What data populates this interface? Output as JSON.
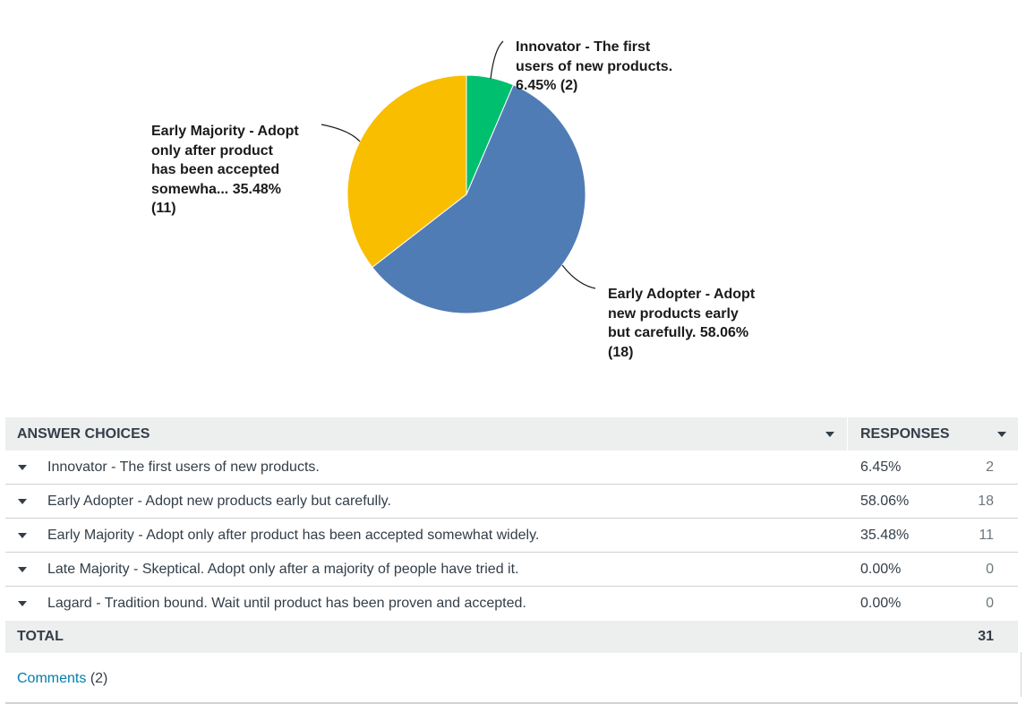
{
  "chart_data": {
    "type": "pie",
    "slices": [
      {
        "label_lines": [
          "Innovator - The first",
          "users of new products.",
          "6.45% (2)"
        ],
        "value": 6.45,
        "color": "#00bf6f"
      },
      {
        "label_lines": [
          "Early Adopter - Adopt",
          "new products early",
          "but carefully. 58.06%",
          "(18)"
        ],
        "value": 58.06,
        "color": "#507cb6"
      },
      {
        "label_lines": [
          "Early Majority - Adopt",
          "only after product",
          "has been accepted",
          "somewha... 35.48%",
          "(11)"
        ],
        "value": 35.48,
        "color": "#f9be00"
      }
    ]
  },
  "table": {
    "header": {
      "choices": "ANSWER CHOICES",
      "responses": "RESPONSES"
    },
    "rows": [
      {
        "label": "Innovator - The first users of new products.",
        "percent": "6.45%",
        "count": "2"
      },
      {
        "label": "Early Adopter - Adopt new products early but carefully.",
        "percent": "58.06%",
        "count": "18"
      },
      {
        "label": "Early Majority - Adopt only after product has been accepted somewhat widely.",
        "percent": "35.48%",
        "count": "11"
      },
      {
        "label": "Late Majority - Skeptical. Adopt only after a majority of people have tried it.",
        "percent": "0.00%",
        "count": "0"
      },
      {
        "label": "Lagard - Tradition bound. Wait until product has been proven and accepted.",
        "percent": "0.00%",
        "count": "0"
      }
    ],
    "total": {
      "label": "TOTAL",
      "count": "31"
    }
  },
  "comments": {
    "link": "Comments",
    "count": "(2)"
  }
}
